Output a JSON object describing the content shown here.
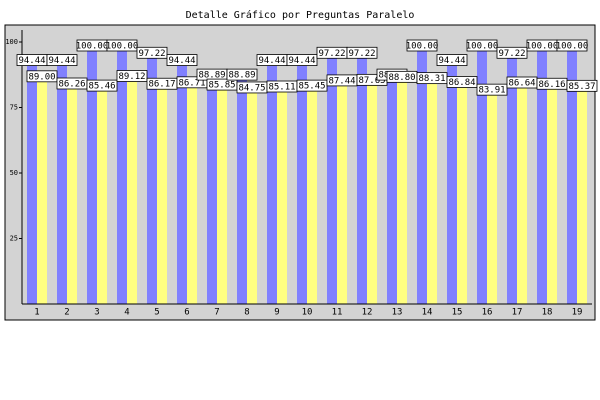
{
  "chart_data": {
    "type": "bar",
    "title": "Detalle Gráfico por Preguntas Paralelo",
    "categories": [
      "1",
      "2",
      "3",
      "4",
      "5",
      "6",
      "7",
      "8",
      "9",
      "10",
      "11",
      "12",
      "13",
      "14",
      "15",
      "16",
      "17",
      "18",
      "19"
    ],
    "series": [
      {
        "color": "#8080ff",
        "values": [
          94.44,
          94.44,
          100.0,
          100.0,
          97.22,
          94.44,
          88.89,
          88.89,
          94.44,
          94.44,
          97.22,
          97.22,
          88.89,
          100.0,
          94.44,
          100.0,
          97.22,
          100.0,
          100.0
        ],
        "value_labels": [
          "94.44",
          "94.44",
          "100.00",
          "100.00",
          "97.22",
          "94.44",
          "88.89",
          "88.89",
          "94.44",
          "94.44",
          "97.22",
          "97.22",
          "88.89",
          "100.00",
          "94.44",
          "100.00",
          "97.22",
          "100.00",
          "100.00"
        ]
      },
      {
        "color": "#ffff80",
        "values": [
          89.0,
          86.26,
          85.46,
          89.12,
          86.17,
          86.71,
          85.85,
          84.75,
          85.11,
          85.45,
          87.44,
          87.65,
          88.8,
          88.31,
          86.84,
          83.91,
          86.64,
          86.16,
          85.37
        ],
        "value_labels": [
          "89.00",
          "86.26",
          "85.46",
          "89.12",
          "86.17",
          "86.71",
          "85.85",
          "84.75",
          "85.11",
          "85.45",
          "87.44",
          "87.65",
          "88.80",
          "88.31",
          "86.84",
          "83.91",
          "86.64",
          "86.16",
          "85.37"
        ]
      }
    ],
    "ylim": [
      0,
      100
    ],
    "yticks": [
      25,
      50,
      75,
      100
    ],
    "plot_background": "#d3d3d3"
  }
}
